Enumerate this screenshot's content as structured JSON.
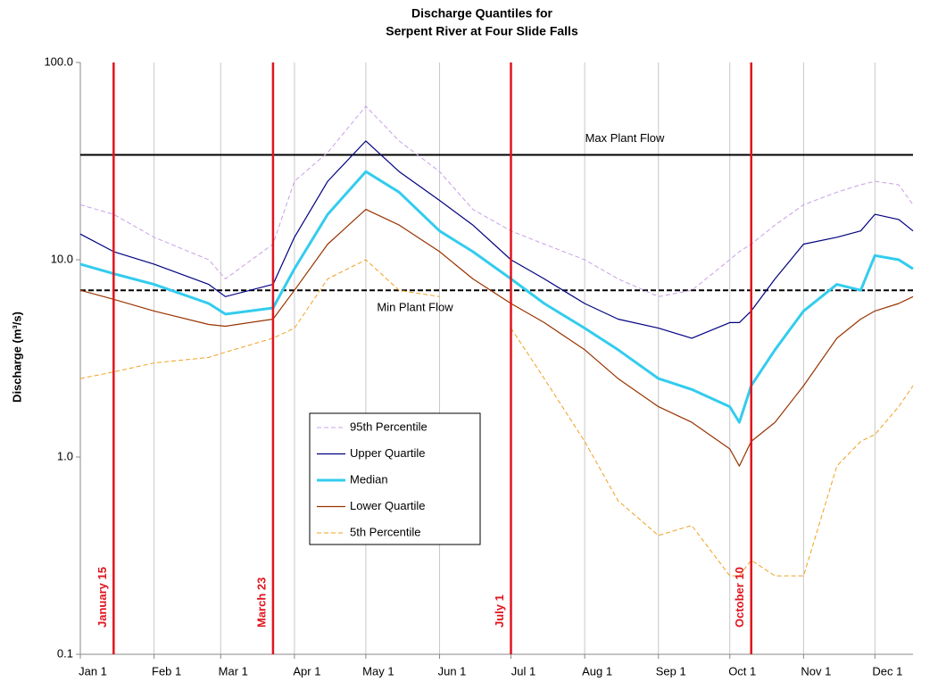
{
  "chart_data": {
    "type": "line",
    "title": [
      "Discharge Quantiles for",
      "Serpent River at Four Slide Falls"
    ],
    "y_label": "Discharge (m³/s)",
    "log_y": true,
    "grid_x": true,
    "legend": "center",
    "xlim": [
      1,
      351
    ],
    "xticks": [
      {
        "value": 1,
        "label": "Jan 1"
      },
      {
        "value": 32,
        "label": "Feb 1"
      },
      {
        "value": 60,
        "label": "Mar 1"
      },
      {
        "value": 91,
        "label": "Apr 1"
      },
      {
        "value": 121,
        "label": "May 1"
      },
      {
        "value": 152,
        "label": "Jun 1"
      },
      {
        "value": 182,
        "label": "Jul 1"
      },
      {
        "value": 213,
        "label": "Aug 1"
      },
      {
        "value": 244,
        "label": "Sep 1"
      },
      {
        "value": 274,
        "label": "Oct 1"
      },
      {
        "value": 305,
        "label": "Nov 1"
      },
      {
        "value": 335,
        "label": "Dec 1"
      }
    ],
    "ylim": [
      0.1,
      100
    ],
    "yticks": [
      0.1,
      {
        "value": 1,
        "label": "1.0"
      },
      {
        "value": 10,
        "label": "10.0"
      },
      {
        "value": 100,
        "label": "100.0"
      }
    ],
    "x": [
      1,
      15,
      32,
      55,
      62,
      82,
      91,
      105,
      121,
      135,
      152,
      166,
      182,
      196,
      213,
      227,
      244,
      258,
      274,
      278,
      283,
      293,
      305,
      319,
      329,
      335,
      345,
      351
    ],
    "series": [
      {
        "name": "95th Percentile",
        "color": "#c8a0e8",
        "style": "dashed",
        "width": 1,
        "values": [
          19,
          17,
          13,
          10,
          8,
          12,
          25,
          35,
          60,
          40,
          28,
          18,
          14,
          12,
          10,
          8,
          6.5,
          7,
          10,
          11,
          12,
          15,
          19,
          22,
          24,
          25,
          24,
          19
        ]
      },
      {
        "name": "Upper Quartile",
        "color": "#000080",
        "style": "solid",
        "width": 1.2,
        "values": [
          13.5,
          11,
          9.5,
          7.5,
          6.5,
          7.5,
          13,
          25,
          40,
          28,
          20,
          15,
          10,
          8,
          6,
          5,
          4.5,
          4,
          4.8,
          4.8,
          5.5,
          8,
          12,
          13,
          14,
          17,
          16,
          14
        ]
      },
      {
        "name": "Median",
        "color": "#33ccee",
        "style": "solid",
        "width": 3,
        "values": [
          9.5,
          8.5,
          7.5,
          6,
          5.3,
          5.7,
          9,
          17,
          28,
          22,
          14,
          11,
          8,
          6,
          4.5,
          3.5,
          2.5,
          2.2,
          1.8,
          1.5,
          2.3,
          3.5,
          5.5,
          7.5,
          7,
          10.5,
          10,
          9
        ]
      },
      {
        "name": "Lower Quartile",
        "color": "#993300",
        "style": "solid",
        "width": 1.2,
        "values": [
          7,
          6.3,
          5.5,
          4.7,
          4.6,
          5,
          7,
          12,
          18,
          15,
          11,
          8,
          6,
          4.8,
          3.5,
          2.5,
          1.8,
          1.5,
          1.1,
          0.9,
          1.2,
          1.5,
          2.3,
          4,
          5,
          5.5,
          6,
          6.5
        ]
      },
      {
        "name": "5th Percentile",
        "color": "#f0a020",
        "style": "dashed",
        "width": 1,
        "values": [
          2.5,
          2.7,
          3,
          3.2,
          3.4,
          4,
          4.5,
          8,
          10,
          7,
          6.5,
          null,
          4.5,
          2.5,
          1.2,
          0.6,
          0.4,
          0.45,
          0.25,
          0.25,
          0.3,
          0.25,
          0.25,
          0.9,
          1.2,
          1.3,
          1.8,
          2.3
        ]
      }
    ],
    "reference_lines": [
      {
        "label": "Max Plant Flow",
        "value": 34,
        "style": "solid"
      },
      {
        "label": "Min Plant Flow",
        "value": 7,
        "style": "dashed"
      }
    ],
    "markers": [
      {
        "label": "January 15",
        "x": 15
      },
      {
        "label": "March 23",
        "x": 82
      },
      {
        "label": "July 1",
        "x": 182
      },
      {
        "label": "October 10",
        "x": 283
      }
    ]
  }
}
